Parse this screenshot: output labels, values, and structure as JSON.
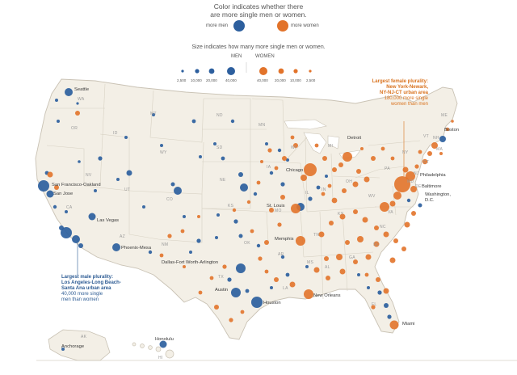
{
  "header": {
    "color_line1": "Color indicates whether there",
    "color_line2": "are more single men or women.",
    "more_men": "more men",
    "more_women": "more women",
    "size_line": "Size indicates how many more single men or women.",
    "men": "MEN",
    "women": "WOMEN",
    "men_ticks": [
      "2,500",
      "10,000",
      "20,000",
      "40,000"
    ],
    "women_ticks": [
      "40,000",
      "20,000",
      "10,000",
      "2,500"
    ]
  },
  "colors": {
    "men": "#2d5f9e",
    "women": "#e2732a",
    "land": "#f3efe6",
    "border": "#c9c2b4"
  },
  "annotations": {
    "female": {
      "title1": "Largest female plurality:",
      "title2": "New York-Newark,",
      "title3": "NY-NJ-CT urban area",
      "line1": "180,000 more single",
      "line2": "women than men"
    },
    "male": {
      "title1": "Largest male plurality:",
      "title2": "Los Angeles-Long Beach-",
      "title3": "Santa Ana urban area",
      "line1": "40,000 more single",
      "line2": "men than women"
    }
  },
  "cities": {
    "seattle": "Seattle",
    "sf": "San Francisco-Oakland",
    "sanjose": "San Jose",
    "lasvegas": "Las Vegas",
    "phoenix": "Phoenix-Mesa",
    "dallas": "Dallas-Fort Worth-Arlington",
    "austin": "Austin",
    "houston": "Houston",
    "neworleans": "New Orleans",
    "memphis": "Memphis",
    "stlouis": "St. Louis",
    "chicago": "Chicago",
    "detroit": "Detroit",
    "boston": "Boston",
    "philadelphia": "Philadelphia",
    "baltimore": "Baltimore",
    "washington1": "Washington,",
    "washington2": "D.C.",
    "miami": "Miami",
    "honolulu": "Honolulu",
    "anchorage": "Anchorage"
  },
  "states": {
    "WA": "WA",
    "OR": "OR",
    "CA": "CA",
    "NV": "NV",
    "ID": "ID",
    "MT": "MT",
    "WY": "WY",
    "UT": "UT",
    "AZ": "AZ",
    "CO": "CO",
    "NM": "NM",
    "ND": "ND",
    "SD": "SD",
    "NE": "NE",
    "KS": "KS",
    "OK": "OK",
    "TX": "TX",
    "MN": "MN",
    "IA": "IA",
    "MO": "MO",
    "AR": "AR",
    "LA": "LA",
    "WI": "WI",
    "IL": "IL",
    "MI": "MI",
    "IN": "IN",
    "OH": "OH",
    "KY": "KY",
    "TN": "TN",
    "MS": "MS",
    "AL": "AL",
    "GA": "GA",
    "FL": "FL",
    "SC": "SC",
    "NC": "NC",
    "VA": "VA",
    "WV": "WV",
    "PA": "PA",
    "NY": "NY",
    "VT": "VT",
    "NH": "NH",
    "ME": "ME",
    "MA": "MA",
    "CT": "CT",
    "NJ": "NJ",
    "DE": "DE",
    "MD": "MD",
    "AK": "AK",
    "HI": "HI"
  }
}
